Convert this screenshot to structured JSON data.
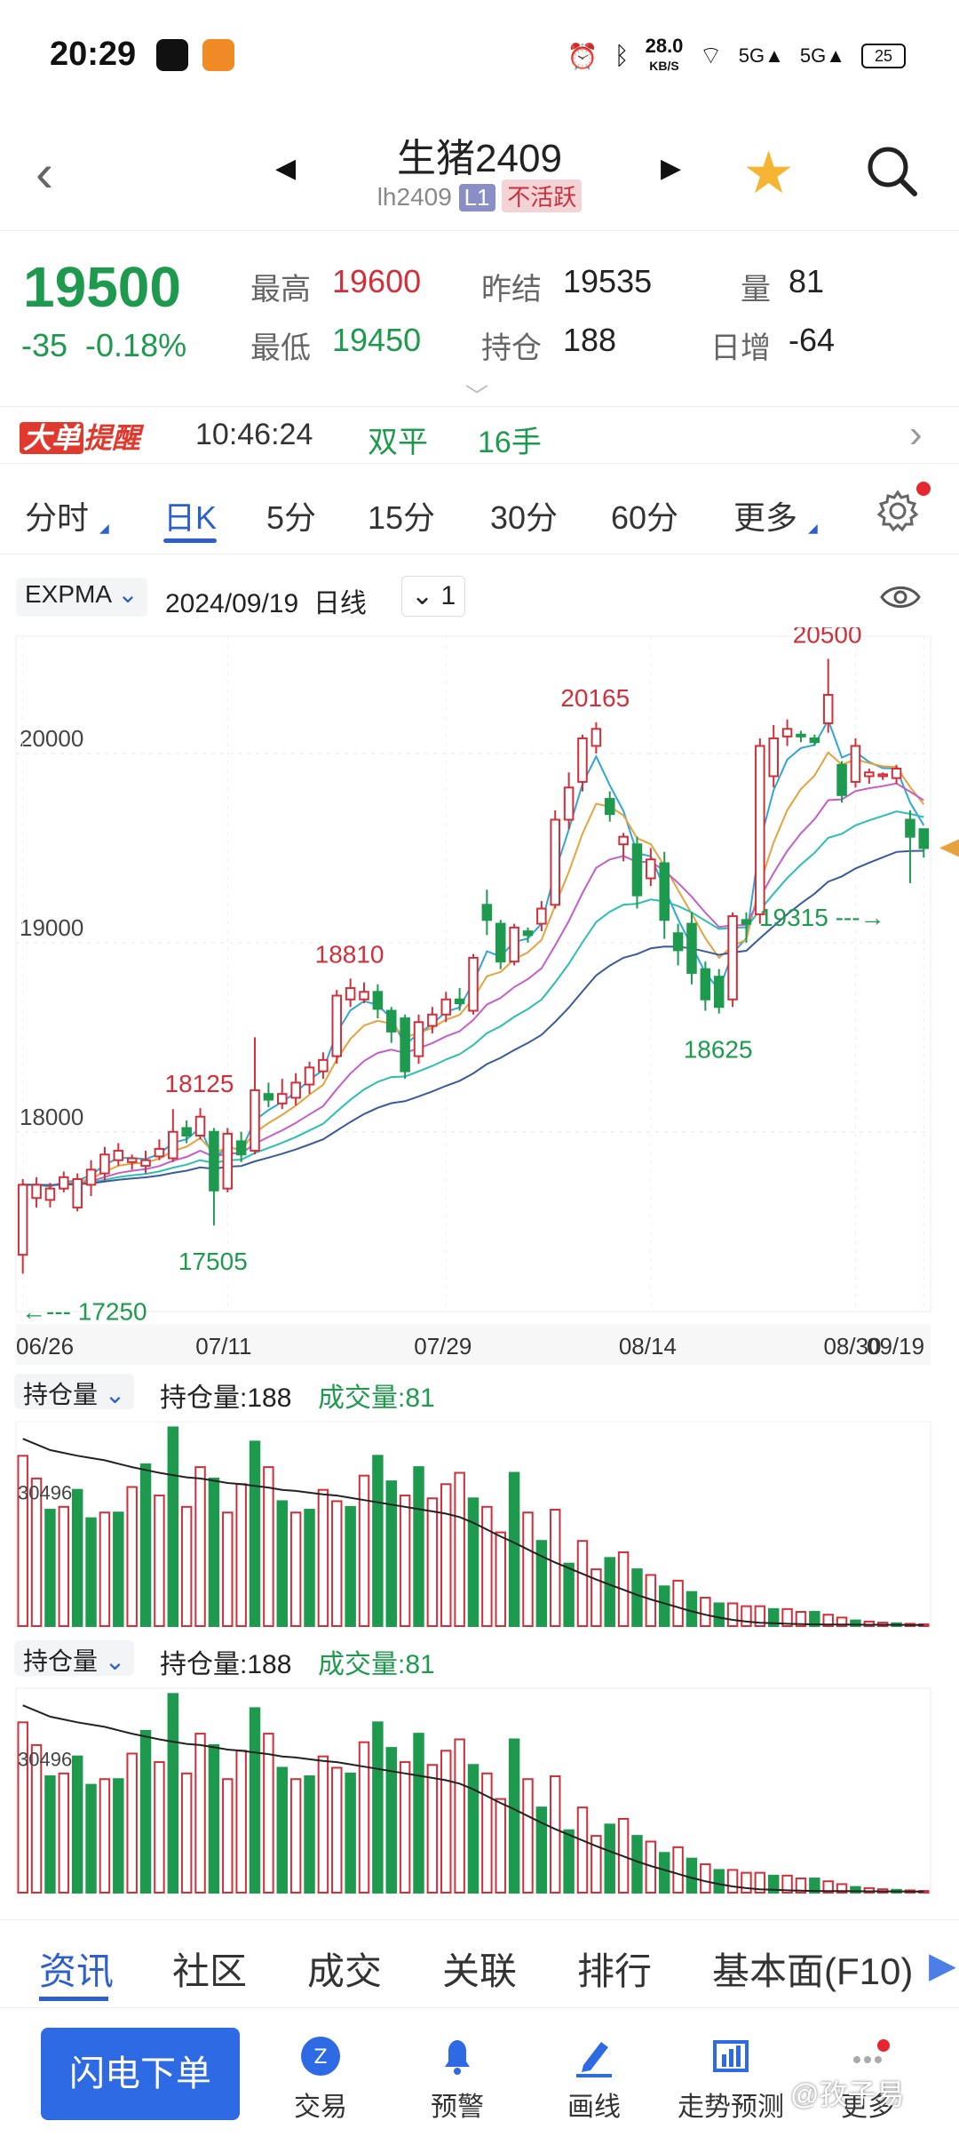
{
  "status_bar": {
    "time": "20:29",
    "net_speed": "28.0",
    "net_unit": "KB/S",
    "battery": "25"
  },
  "header": {
    "title": "生猪2409",
    "code": "lh2409",
    "level_tag": "L1",
    "status_tag": "不活跃"
  },
  "quote": {
    "last": "19500",
    "change": "-35",
    "change_pct": "-0.18%",
    "labels": {
      "high": "最高",
      "low": "最低",
      "prev_settle": "昨结",
      "open_interest": "持仓",
      "volume": "量",
      "daily_change": "日增"
    },
    "high": "19600",
    "low": "19450",
    "prev_settle": "19535",
    "open_interest": "188",
    "volume": "81",
    "daily_change": "-64"
  },
  "alert": {
    "logo_a": "大单",
    "logo_b": "提醒",
    "time": "10:46:24",
    "type": "双平",
    "qty": "16手"
  },
  "period_tabs": [
    "分时",
    "日K",
    "5分",
    "15分",
    "30分",
    "60分",
    "更多"
  ],
  "indicator": {
    "name": "EXPMA",
    "date": "2024/09/19",
    "period": "日线",
    "count": "1"
  },
  "chart_data": {
    "type": "candlestick",
    "x_ticks": [
      "06/26",
      "07/11",
      "07/29",
      "08/14",
      "08/30",
      "09/19"
    ],
    "y_ticks": [
      "18000",
      "19000",
      "20000"
    ],
    "ylim": [
      17050,
      20620
    ],
    "price_annotations": [
      "18125",
      "17505",
      "18810",
      "20165",
      "18625",
      "20500",
      "19315",
      "17250"
    ],
    "candles": [
      [
        17350,
        17720,
        17250,
        17750
      ],
      [
        17650,
        17720,
        17600,
        17760
      ],
      [
        17640,
        17700,
        17600,
        17730
      ],
      [
        17700,
        17760,
        17680,
        17790
      ],
      [
        17600,
        17750,
        17580,
        17780
      ],
      [
        17720,
        17800,
        17660,
        17850
      ],
      [
        17780,
        17880,
        17740,
        17920
      ],
      [
        17850,
        17900,
        17820,
        17940
      ],
      [
        17840,
        17860,
        17800,
        17880
      ],
      [
        17820,
        17850,
        17780,
        17900
      ],
      [
        17870,
        17910,
        17850,
        17960
      ],
      [
        17860,
        18000,
        17840,
        18120
      ],
      [
        18020,
        17980,
        17940,
        18060
      ],
      [
        17980,
        18080,
        17960,
        18125
      ],
      [
        18000,
        17690,
        17505,
        18020
      ],
      [
        17700,
        17990,
        17680,
        18020
      ],
      [
        17950,
        17880,
        17840,
        18000
      ],
      [
        17900,
        18220,
        17880,
        18500
      ],
      [
        18200,
        18170,
        18130,
        18260
      ],
      [
        18150,
        18200,
        18120,
        18280
      ],
      [
        18180,
        18260,
        18140,
        18310
      ],
      [
        18250,
        18340,
        18200,
        18370
      ],
      [
        18320,
        18380,
        18280,
        18420
      ],
      [
        18400,
        18720,
        18360,
        18750
      ],
      [
        18700,
        18760,
        18660,
        18810
      ],
      [
        18700,
        18740,
        18680,
        18790
      ],
      [
        18740,
        18650,
        18600,
        18780
      ],
      [
        18640,
        18530,
        18470,
        18660
      ],
      [
        18600,
        18320,
        18280,
        18620
      ],
      [
        18400,
        18580,
        18360,
        18620
      ],
      [
        18560,
        18620,
        18520,
        18660
      ],
      [
        18620,
        18700,
        18580,
        18740
      ],
      [
        18700,
        18680,
        18640,
        18760
      ],
      [
        18640,
        18920,
        18620,
        18940
      ],
      [
        19200,
        19120,
        19040,
        19280
      ],
      [
        19100,
        18900,
        18860,
        19120
      ],
      [
        18900,
        19080,
        18880,
        19100
      ],
      [
        19060,
        19040,
        19000,
        19080
      ],
      [
        19100,
        19180,
        19060,
        19220
      ],
      [
        19200,
        19650,
        19180,
        19700
      ],
      [
        19650,
        19820,
        19600,
        19900
      ],
      [
        19850,
        20080,
        19800,
        20100
      ],
      [
        20040,
        20130,
        20000,
        20165
      ],
      [
        19760,
        19680,
        19640,
        19800
      ],
      [
        19520,
        19560,
        19430,
        19580
      ],
      [
        19520,
        19250,
        19180,
        19560
      ],
      [
        19340,
        19440,
        19300,
        19500
      ],
      [
        19420,
        19120,
        19020,
        19480
      ],
      [
        19050,
        18960,
        18880,
        19100
      ],
      [
        19100,
        18840,
        18780,
        19160
      ],
      [
        18860,
        18700,
        18640,
        18900
      ],
      [
        18820,
        18660,
        18625,
        18860
      ],
      [
        18700,
        19140,
        18660,
        19160
      ],
      [
        19120,
        19100,
        19000,
        19160
      ],
      [
        19150,
        20040,
        19100,
        20080
      ],
      [
        19880,
        20080,
        19820,
        20150
      ],
      [
        20090,
        20130,
        20040,
        20180
      ],
      [
        20100,
        20090,
        20060,
        20120
      ],
      [
        20080,
        20060,
        20040,
        20100
      ],
      [
        20160,
        20310,
        20110,
        20500
      ],
      [
        19940,
        19780,
        19740,
        19960
      ],
      [
        19850,
        20040,
        19820,
        20080
      ],
      [
        19880,
        19900,
        19840,
        19920
      ],
      [
        19880,
        19890,
        19860,
        19900
      ],
      [
        19870,
        19920,
        19840,
        19940
      ],
      [
        19650,
        19560,
        19315,
        19700
      ],
      [
        19600,
        19500,
        19450,
        19600
      ]
    ]
  },
  "vol_panel": {
    "selector": "持仓量",
    "oi_text": "持仓量:188",
    "vol_text": "成交量:81",
    "axis_label": "30496"
  },
  "vol_chart": {
    "type": "bar",
    "ylim": [
      0,
      36000
    ],
    "values": [
      30000,
      26000,
      20500,
      21000,
      24000,
      19000,
      20000,
      20000,
      24500,
      28500,
      23000,
      35000,
      21000,
      28000,
      26000,
      20000,
      25000,
      32500,
      28000,
      22000,
      20000,
      20500,
      24000,
      22000,
      21000,
      26500,
      30000,
      25500,
      23000,
      28000,
      22500,
      25000,
      27000,
      22500,
      21000,
      16500,
      27000,
      20000,
      15000,
      20500,
      11000,
      15000,
      10000,
      12000,
      13000,
      10000,
      9000,
      7000,
      8000,
      6000,
      5000,
      4000,
      4000,
      3500,
      3500,
      3000,
      3000,
      2500,
      2500,
      2000,
      1500,
      1000,
      800,
      600,
      500,
      400,
      300
    ],
    "up_down": [
      1,
      1,
      0,
      1,
      0,
      0,
      1,
      0,
      1,
      0,
      1,
      0,
      1,
      1,
      0,
      1,
      1,
      0,
      1,
      0,
      1,
      0,
      1,
      1,
      0,
      1,
      0,
      0,
      1,
      0,
      1,
      1,
      1,
      0,
      1,
      1,
      0,
      1,
      0,
      1,
      0,
      1,
      1,
      0,
      1,
      0,
      1,
      0,
      1,
      0,
      1,
      0,
      1,
      1,
      1,
      0,
      1,
      1,
      0,
      1,
      1,
      0,
      1,
      1,
      0,
      1,
      1
    ],
    "oi_line": [
      33000,
      32000,
      31000,
      30500,
      30000,
      29600,
      29200,
      28600,
      28000,
      27500,
      27000,
      26600,
      26200,
      26000,
      25600,
      25200,
      25000,
      24700,
      24400,
      24000,
      23800,
      23500,
      23200,
      23000,
      22600,
      22200,
      21800,
      21400,
      21000,
      20600,
      20200,
      19800,
      19200,
      18200,
      17000,
      15800,
      14700,
      13500,
      12300,
      11200,
      10200,
      9200,
      8200,
      7300,
      6400,
      5500,
      4700,
      4000,
      3300,
      2600,
      2000,
      1500,
      1100,
      800,
      600,
      500,
      400,
      350,
      300,
      280,
      260,
      250,
      240,
      230,
      220,
      210,
      200
    ]
  },
  "bottom_tabs": [
    "资讯",
    "社区",
    "成交",
    "关联",
    "排行",
    "基本面(F10)"
  ],
  "toolbar": {
    "flash_order": "闪电下单",
    "trade": "交易",
    "alert": "预警",
    "draw": "画线",
    "forecast": "走势预测",
    "more": "更多",
    "watermark": "@孜子易"
  },
  "colors": {
    "up": "#d12f3a",
    "down": "#1e9a4e",
    "accent": "#2e5fce",
    "brand_blue": "#2e6ae4"
  }
}
